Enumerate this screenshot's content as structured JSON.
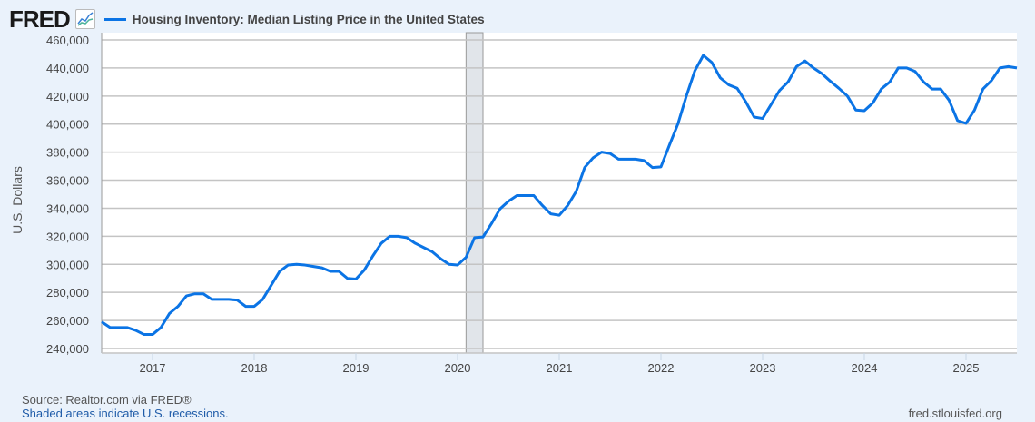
{
  "header": {
    "logo": "FRED",
    "title": "Housing Inventory: Median Listing Price in the United States"
  },
  "footer": {
    "source": "Source: Realtor.com via FRED®",
    "recession_note": "Shaded areas indicate U.S. recessions.",
    "site": "fred.stlouisfed.org"
  },
  "colors": {
    "series": "#0b74e5",
    "recession": "#e1e5ea",
    "background": "#eaf2fb"
  },
  "chart_data": {
    "type": "line",
    "title": "Housing Inventory: Median Listing Price in the United States",
    "ylabel": "U.S. Dollars",
    "xlabel": "",
    "frequency": "monthly",
    "start": "2016-07",
    "end": "2025-07",
    "ylim": [
      240000,
      460000
    ],
    "yticks": [
      240000,
      260000,
      280000,
      300000,
      320000,
      340000,
      360000,
      380000,
      400000,
      420000,
      440000,
      460000
    ],
    "ytick_labels": [
      "240,000",
      "260,000",
      "280,000",
      "300,000",
      "320,000",
      "340,000",
      "360,000",
      "380,000",
      "400,000",
      "420,000",
      "440,000",
      "460,000"
    ],
    "xtick_labels": [
      "2017",
      "2018",
      "2019",
      "2020",
      "2021",
      "2022",
      "2023",
      "2024",
      "2025"
    ],
    "grid": "horizontal",
    "recessions": [
      [
        "2020-02",
        "2020-04"
      ]
    ],
    "series": [
      {
        "name": "Housing Inventory: Median Listing Price in the United States",
        "values": [
          259000,
          255000,
          255000,
          255000,
          253000,
          250000,
          250000,
          255000,
          265000,
          270000,
          277500,
          279000,
          279000,
          275000,
          275000,
          275000,
          274500,
          270000,
          270000,
          275000,
          285000,
          295000,
          299500,
          300000,
          299500,
          298500,
          297500,
          295000,
          295000,
          290000,
          289500,
          296000,
          306000,
          315000,
          320000,
          320000,
          319000,
          315000,
          312000,
          309000,
          304000,
          300000,
          299500,
          305000,
          319000,
          319500,
          329000,
          339500,
          345000,
          349000,
          349000,
          349000,
          342000,
          336000,
          335000,
          342000,
          352000,
          369000,
          376000,
          380000,
          379000,
          375000,
          375000,
          375000,
          374000,
          369000,
          369500,
          385000,
          400000,
          420000,
          438000,
          449000,
          444000,
          433000,
          428000,
          425500,
          416000,
          405000,
          404000,
          414000,
          424000,
          430000,
          441000,
          445000,
          440000,
          436000,
          430500,
          425500,
          420000,
          410000,
          409500,
          415000,
          425000,
          430000,
          440000,
          440000,
          437500,
          430000,
          425000,
          425000,
          417000,
          402500,
          400500,
          410000,
          425000,
          431000,
          440000,
          441000,
          440000
        ]
      }
    ]
  }
}
